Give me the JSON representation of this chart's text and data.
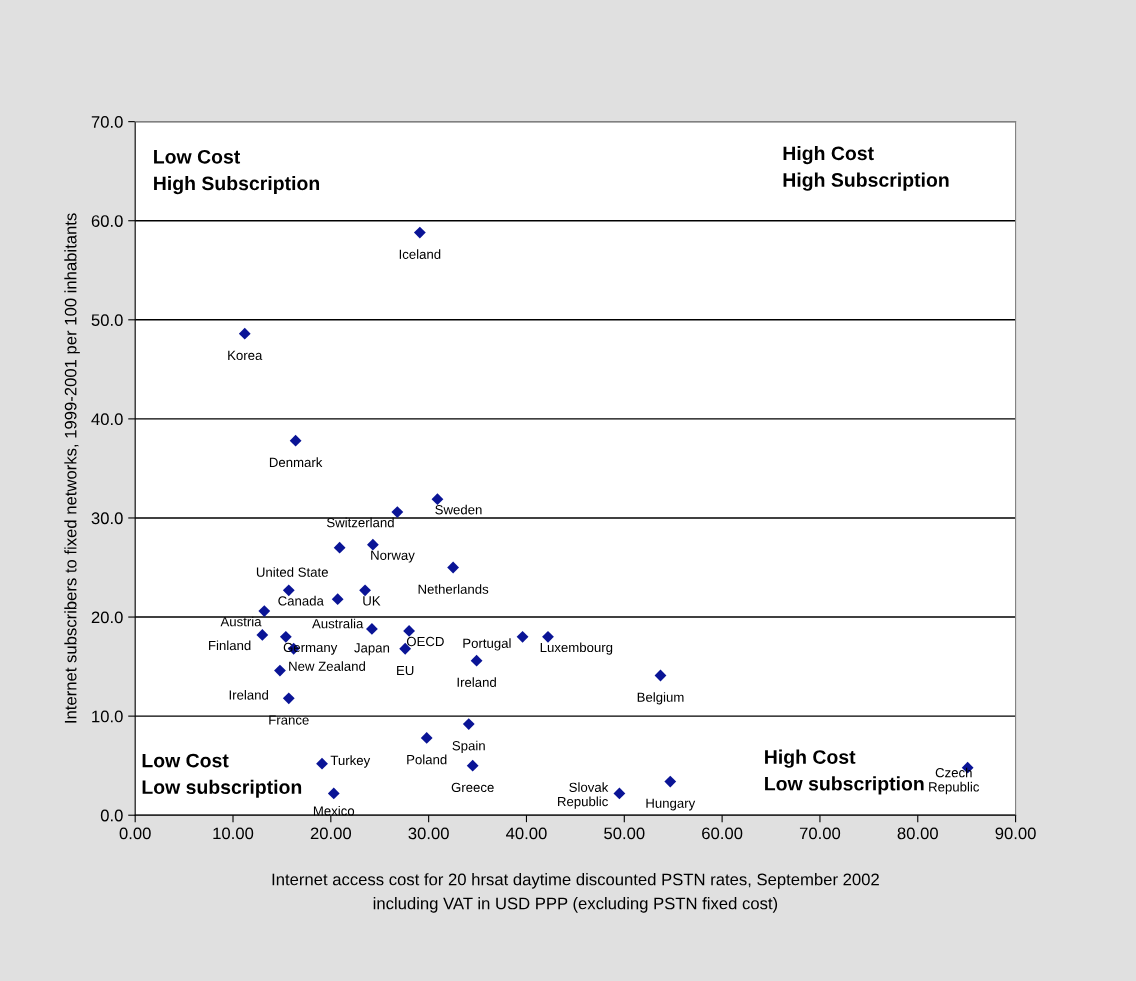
{
  "chart_data": {
    "type": "scatter",
    "xlabel": "Internet access cost for 20 hrsat daytime discounted PSTN rates, September 2002\nincluding VAT in USD PPP (excluding PSTN fixed cost)",
    "ylabel": "Internet subscribers to fixed networks, 1999-2001 per 100 inhabitants",
    "x": [
      29.1,
      11.2,
      16.4,
      30.9,
      26.8,
      20.9,
      24.3,
      32.5,
      15.7,
      23.5,
      20.7,
      13.2,
      13.0,
      15.4,
      24.2,
      28.0,
      27.6,
      16.2,
      14.8,
      15.7,
      39.6,
      42.2,
      34.9,
      53.7,
      34.1,
      29.8,
      34.5,
      19.1,
      20.3,
      49.5,
      54.7,
      85.1
    ],
    "series": [
      {
        "color": "#0a1496",
        "values": [
          58.8,
          48.6,
          37.8,
          31.9,
          30.6,
          27.0,
          27.3,
          25.0,
          22.7,
          22.7,
          21.8,
          20.6,
          18.2,
          18.0,
          18.8,
          18.6,
          16.8,
          16.8,
          14.6,
          11.8,
          18.0,
          18.0,
          15.6,
          14.1,
          9.2,
          7.8,
          5.0,
          5.2,
          2.2,
          2.2,
          3.4,
          4.8
        ]
      }
    ],
    "annotations": [
      {
        "text": "Iceland",
        "x": 29.1,
        "y": 58.8
      },
      {
        "text": "Korea",
        "x": 11.2,
        "y": 48.6
      },
      {
        "text": "Denmark",
        "x": 16.4,
        "y": 37.8
      },
      {
        "text": "Sweden",
        "x": 30.9,
        "y": 31.9
      },
      {
        "text": "Switzerland",
        "x": 26.8,
        "y": 30.6
      },
      {
        "text": "United State",
        "x": 20.9,
        "y": 27.0
      },
      {
        "text": "Norway",
        "x": 24.3,
        "y": 27.3
      },
      {
        "text": "Netherlands",
        "x": 32.5,
        "y": 25.0
      },
      {
        "text": "Canada",
        "x": 15.7,
        "y": 22.7
      },
      {
        "text": "UK",
        "x": 23.5,
        "y": 22.7
      },
      {
        "text": "Australia",
        "x": 20.7,
        "y": 21.8
      },
      {
        "text": "Austria",
        "x": 13.2,
        "y": 20.6
      },
      {
        "text": "Finland",
        "x": 13.0,
        "y": 18.2
      },
      {
        "text": "Germany",
        "x": 15.4,
        "y": 18.0
      },
      {
        "text": "Japan",
        "x": 24.2,
        "y": 18.8
      },
      {
        "text": "OECD",
        "x": 28.0,
        "y": 18.6
      },
      {
        "text": "EU",
        "x": 27.6,
        "y": 16.8
      },
      {
        "text": "New Zealand",
        "x": 16.2,
        "y": 16.8
      },
      {
        "text": "Ireland",
        "x": 14.8,
        "y": 14.6
      },
      {
        "text": "France",
        "x": 15.7,
        "y": 11.8
      },
      {
        "text": "Portugal",
        "x": 39.6,
        "y": 18.0
      },
      {
        "text": "Luxembourg",
        "x": 42.2,
        "y": 18.0
      },
      {
        "text": "Ireland",
        "x": 34.9,
        "y": 15.6
      },
      {
        "text": "Belgium",
        "x": 53.7,
        "y": 14.1
      },
      {
        "text": "Spain",
        "x": 34.1,
        "y": 9.2
      },
      {
        "text": "Poland",
        "x": 29.8,
        "y": 7.8
      },
      {
        "text": "Greece",
        "x": 34.5,
        "y": 5.0
      },
      {
        "text": "Turkey",
        "x": 19.1,
        "y": 5.2
      },
      {
        "text": "Mexico",
        "x": 20.3,
        "y": 2.2
      },
      {
        "text": "Slovak\nRepublic",
        "x": 49.5,
        "y": 2.2
      },
      {
        "text": "Hungary",
        "x": 54.7,
        "y": 3.4
      },
      {
        "text": "Czech\nRepublic",
        "x": 85.1,
        "y": 4.8
      },
      "Low Cost\nHigh Subscription",
      "High Cost\nHigh Subscription",
      "Low Cost\nLow subscription",
      "High Cost\nLow subscription"
    ],
    "xlim": [
      0,
      90
    ],
    "xticks": [
      {
        "value": 0,
        "label": "0.00"
      },
      {
        "value": 10,
        "label": "10.00"
      },
      {
        "value": 20,
        "label": "20.00"
      },
      {
        "value": 30,
        "label": "30.00"
      },
      {
        "value": 40,
        "label": "40.00"
      },
      {
        "value": 50,
        "label": "50.00"
      },
      {
        "value": 60,
        "label": "60.00"
      },
      {
        "value": 70,
        "label": "70.00"
      },
      {
        "value": 80,
        "label": "80.00"
      },
      {
        "value": 90,
        "label": "90.00"
      }
    ],
    "ylim": [
      0,
      70
    ],
    "yticks": [
      {
        "value": 0,
        "label": "0.0"
      },
      {
        "value": 10,
        "label": "10.0"
      },
      {
        "value": 20,
        "label": "20.0"
      },
      {
        "value": 30,
        "label": "30.0"
      },
      {
        "value": 40,
        "label": "40.0"
      },
      {
        "value": 50,
        "label": "50.0"
      },
      {
        "value": 60,
        "label": "60.0"
      },
      {
        "value": 70,
        "label": "70.0"
      }
    ],
    "grid": "y",
    "marker": "diamond",
    "legend": false
  }
}
